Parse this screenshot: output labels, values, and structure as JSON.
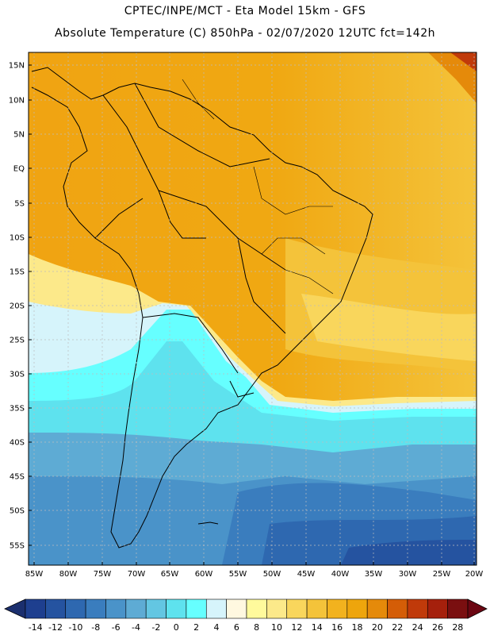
{
  "header": {
    "line1": "CPTEC/INPE/MCT -  Eta Model 15km - GFS",
    "line2": "Absolute Temperature (C) 850hPa - 02/07/2020 12UTC fct=142h"
  },
  "axes": {
    "lat_labels": [
      "15N",
      "10N",
      "5N",
      "EQ",
      "5S",
      "10S",
      "15S",
      "20S",
      "25S",
      "30S",
      "35S",
      "40S",
      "45S",
      "50S",
      "55S"
    ],
    "lon_labels": [
      "85W",
      "80W",
      "75W",
      "70W",
      "65W",
      "60W",
      "55W",
      "50W",
      "45W",
      "40W",
      "35W",
      "30W",
      "25W",
      "20W"
    ]
  },
  "colorbar": {
    "labels": [
      "-14",
      "-12",
      "-10",
      "-8",
      "-6",
      "-4",
      "-2",
      "0",
      "2",
      "4",
      "6",
      "8",
      "10",
      "12",
      "14",
      "16",
      "18",
      "20",
      "22",
      "24",
      "26",
      "28"
    ],
    "colors": [
      "#1e3f8f",
      "#2553a0",
      "#2e68b0",
      "#3a7dbe",
      "#4a93c9",
      "#5eabd4",
      "#63c6e2",
      "#5ee2ee",
      "#66ffff",
      "#d6f4fb",
      "#fff8e0",
      "#fffa9c",
      "#fce98a",
      "#f9d65c",
      "#f4c33a",
      "#f2b21e",
      "#eea50c",
      "#e58a0a",
      "#d45d07",
      "#c03a0a",
      "#a5200c",
      "#7a0f10"
    ],
    "under_color": "#1b2f6e",
    "over_color": "#6b0612"
  },
  "map_layers": {
    "projection": "Cylindrical equidistant",
    "layers": [
      "temperature-field",
      "country-borders",
      "state-borders",
      "lat-lon-grid"
    ]
  }
}
